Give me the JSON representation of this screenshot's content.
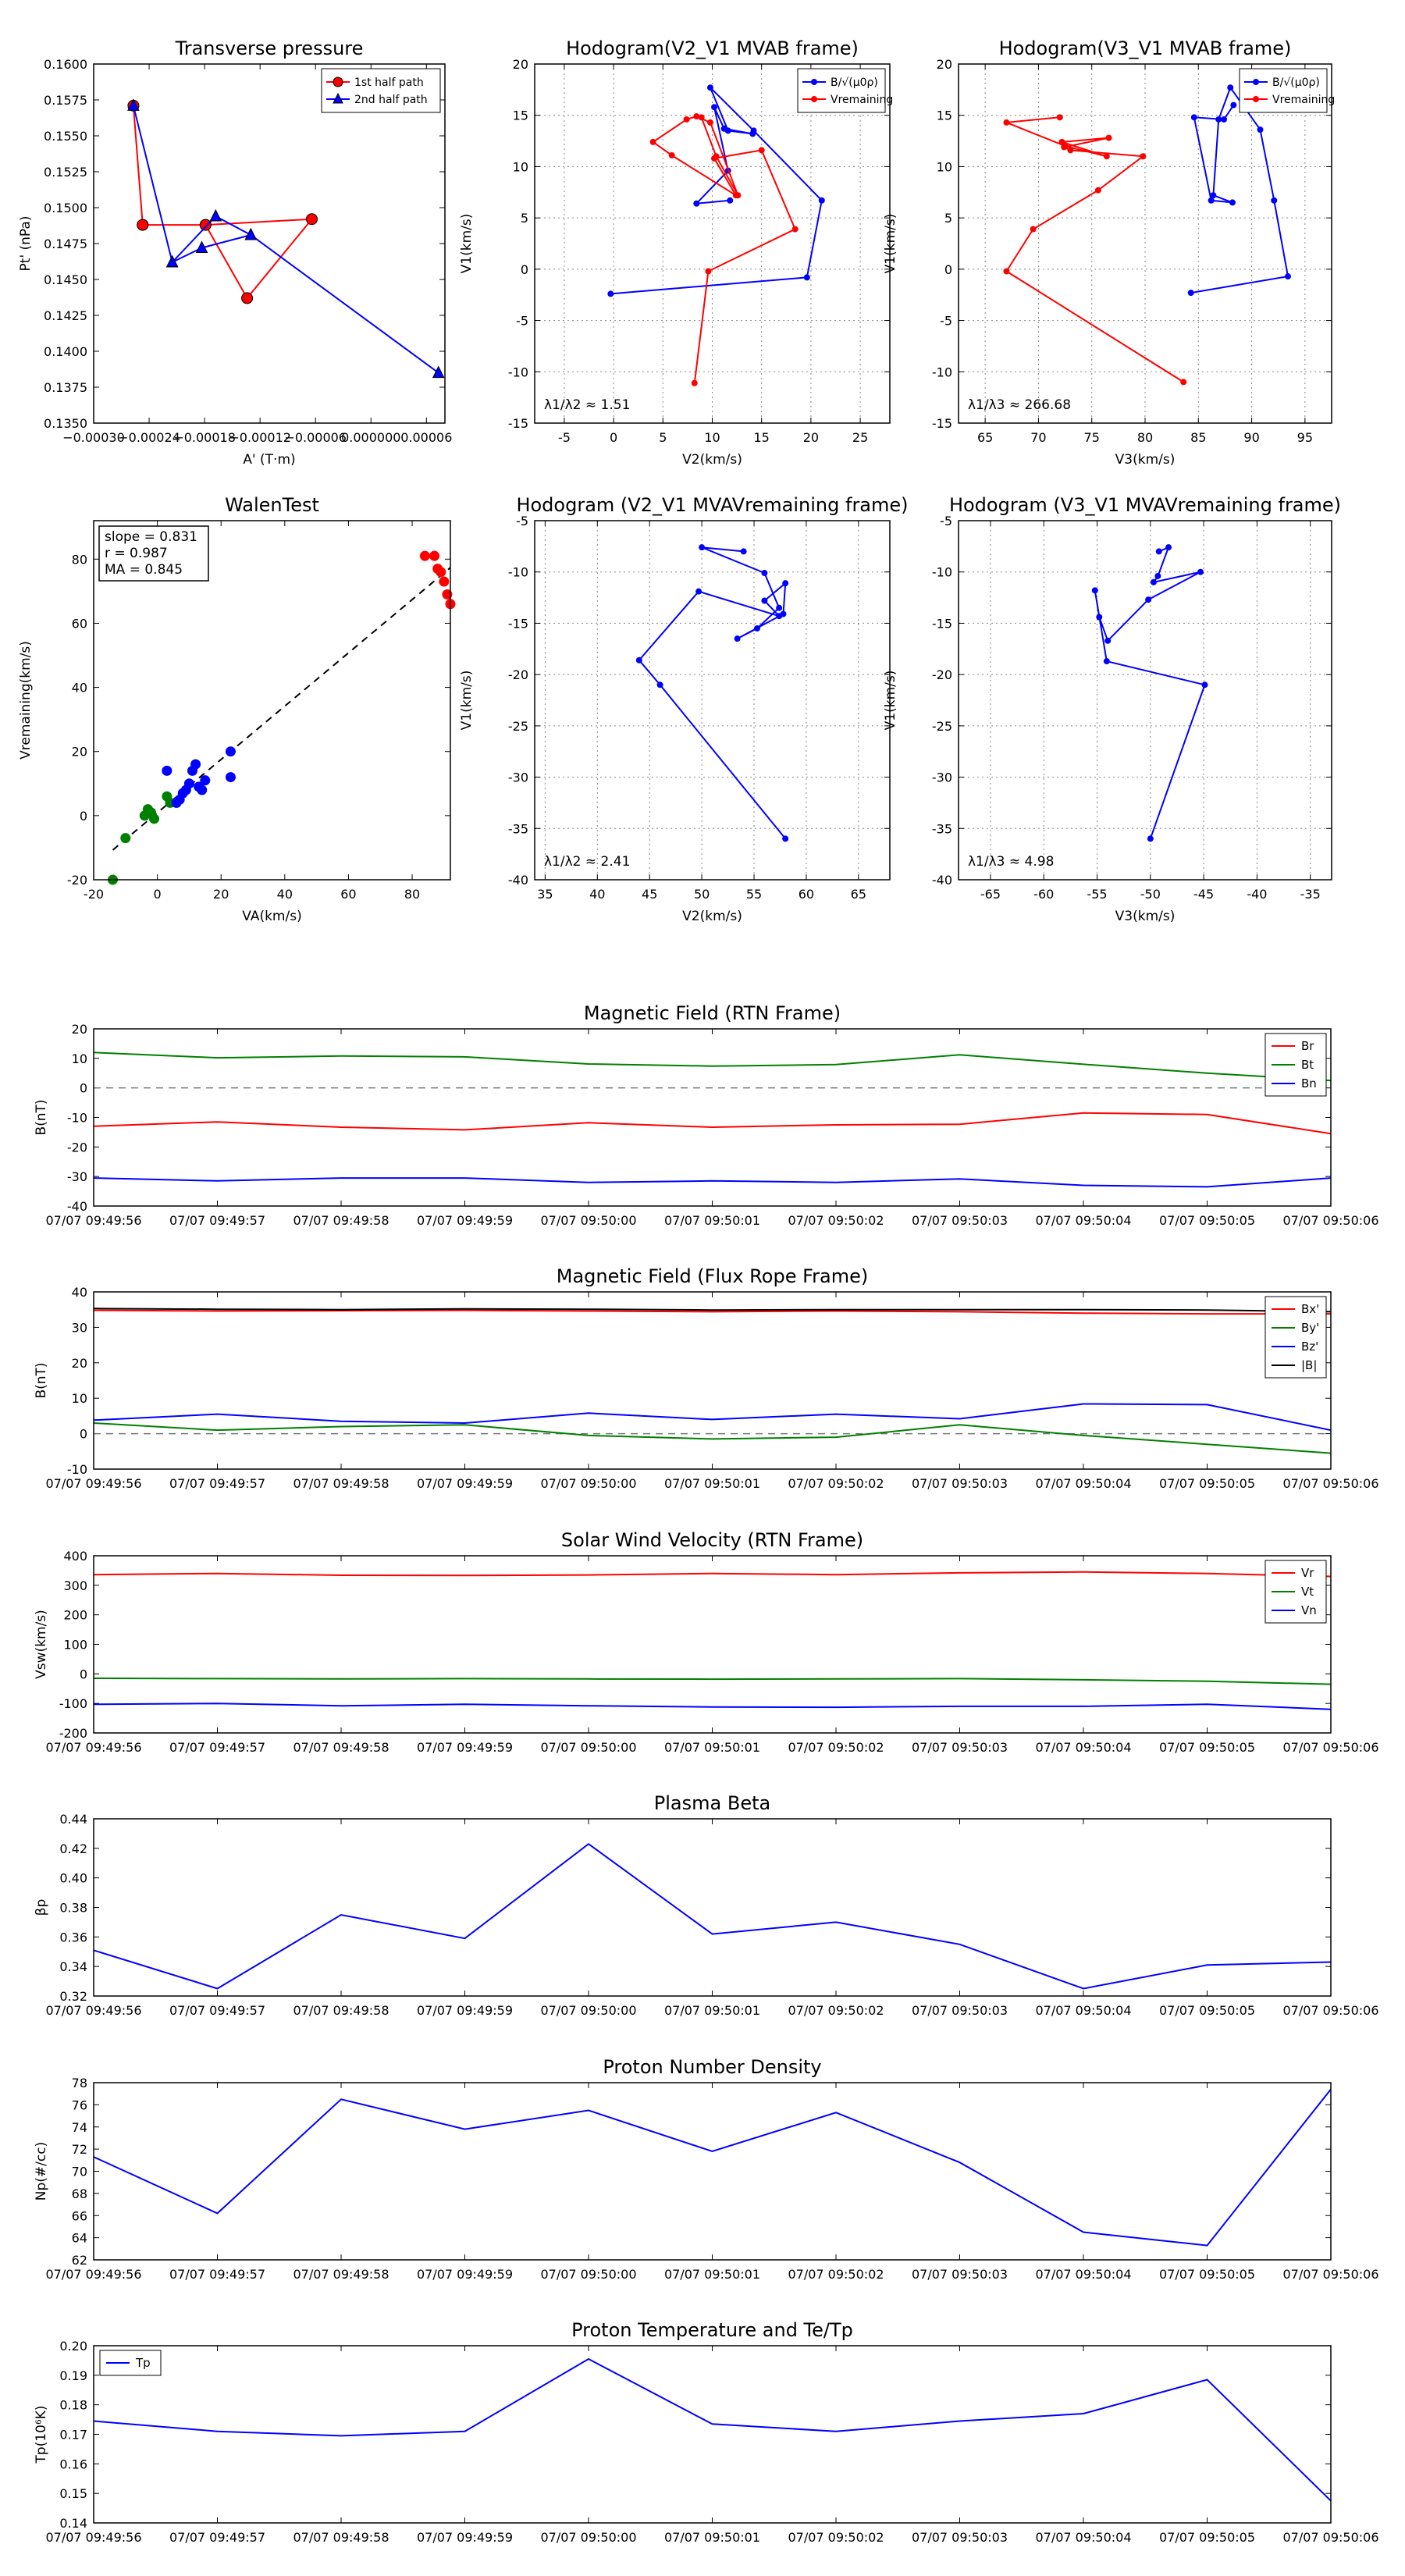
{
  "chart_data": [
    {
      "id": "tp",
      "type": "line",
      "title": "Transverse pressure",
      "xlabel": "A' (T·m)",
      "ylabel": "Pt' (nPa)",
      "xlim": [
        -0.0003,
        8e-05
      ],
      "ylim": [
        0.135,
        0.16
      ],
      "xticks": [
        -0.0003,
        -0.00024,
        -0.00018,
        -0.00012,
        -6e-05,
        0.0,
        6e-05
      ],
      "xtick_labels": [
        "−0.00030",
        "−0.00024",
        "−0.00018",
        "−0.00012",
        "−0.00006",
        "0.000000",
        "0.00006"
      ],
      "yticks": [
        0.135,
        0.1375,
        0.14,
        0.1425,
        0.145,
        0.1475,
        0.15,
        0.1525,
        0.155,
        0.1575,
        0.16
      ],
      "ytick_labels": [
        "0.1350",
        "0.1375",
        "0.1400",
        "0.1425",
        "0.1450",
        "0.1475",
        "0.1500",
        "0.1525",
        "0.1550",
        "0.1575",
        "0.1600"
      ],
      "grid": false,
      "legend": "top-right",
      "series": [
        {
          "name": "1st half path",
          "color": "#ff0000",
          "marker": "circle",
          "x": [
            -0.000257,
            -0.000247,
            -0.000179,
            -0.000134,
            -6.4e-05,
            -0.000179,
            -0.000247
          ],
          "y": [
            0.1571,
            0.1488,
            0.1488,
            0.1437,
            0.1492,
            0.1488,
            0.1488
          ]
        },
        {
          "name": "2nd half path",
          "color": "#0000ff",
          "marker": "triangle",
          "x": [
            -0.000257,
            -0.000215,
            -0.000168,
            -0.00013,
            7.3e-05,
            -0.00013,
            -0.000183,
            -0.000215
          ],
          "y": [
            0.1571,
            0.1462,
            0.1494,
            0.1481,
            0.1385,
            0.1481,
            0.1472,
            0.1462
          ]
        }
      ]
    },
    {
      "id": "h1",
      "type": "line",
      "title": "Hodogram(V2_V1 MVAB frame)",
      "xlabel": "V2(km/s)",
      "ylabel": "V1(km/s)",
      "xlim": [
        -8,
        28
      ],
      "ylim": [
        -15,
        20
      ],
      "xticks": [
        -5,
        0,
        5,
        10,
        15,
        20,
        25
      ],
      "yticks": [
        -15,
        -10,
        -5,
        0,
        5,
        10,
        15,
        20
      ],
      "grid": true,
      "legend": "top-right",
      "annotation": "λ1/λ2 ≈ 1.51",
      "series": [
        {
          "name": "B/√(μ0ρ)",
          "color": "#0000ff",
          "x": [
            -0.3,
            19.6,
            21.1,
            14.2,
            9.8,
            11.6,
            14.1,
            11.2,
            10.2,
            11.6,
            8.4,
            11.8
          ],
          "y": [
            -2.4,
            -0.8,
            6.7,
            13.5,
            17.7,
            13.5,
            13.2,
            13.7,
            15.8,
            9.6,
            6.4,
            6.7
          ]
        },
        {
          "name": "Vremaining",
          "color": "#ff0000",
          "x": [
            8.2,
            9.6,
            18.4,
            15.0,
            10.2,
            12.4,
            5.9,
            4.0,
            7.4,
            8.4,
            9.8,
            12.6,
            10.4,
            8.9
          ],
          "y": [
            -11.1,
            -0.2,
            3.9,
            11.6,
            10.8,
            7.2,
            11.1,
            12.4,
            14.6,
            14.9,
            14.3,
            7.2,
            11.0,
            14.8
          ]
        }
      ]
    },
    {
      "id": "h2",
      "type": "line",
      "title": "Hodogram(V3_V1 MVAB frame)",
      "xlabel": "V3(km/s)",
      "ylabel": "V1(km/s)",
      "xlim": [
        62.5,
        97.5
      ],
      "ylim": [
        -15,
        20
      ],
      "xticks": [
        65,
        70,
        75,
        80,
        85,
        90,
        95
      ],
      "yticks": [
        -15,
        -10,
        -5,
        0,
        5,
        10,
        15,
        20
      ],
      "grid": true,
      "legend": "top-right",
      "annotation": "λ1/λ3 ≈ 266.68",
      "series": [
        {
          "name": "B/√(μ0ρ)",
          "color": "#0000ff",
          "x": [
            84.3,
            93.4,
            92.1,
            90.8,
            88.0,
            86.9,
            86.4,
            88.2,
            86.2,
            84.6,
            87.4,
            88.3
          ],
          "y": [
            -2.3,
            -0.7,
            6.7,
            13.6,
            17.7,
            14.6,
            7.2,
            6.5,
            6.7,
            14.8,
            14.6,
            16.0
          ]
        },
        {
          "name": "Vremaining",
          "color": "#ff0000",
          "x": [
            83.6,
            67.0,
            69.5,
            75.6,
            79.8,
            73.0,
            72.4,
            76.6,
            72.2,
            76.4,
            72.5,
            67.0,
            72.0
          ],
          "y": [
            -11.0,
            -0.2,
            3.9,
            7.7,
            11.0,
            11.6,
            11.9,
            12.8,
            12.4,
            11.0,
            12.0,
            14.3,
            14.8
          ]
        }
      ]
    },
    {
      "id": "walen",
      "type": "scatter",
      "title": "WalenTest",
      "xlabel": "VA(km/s)",
      "ylabel": "Vremaining(km/s)",
      "xlim": [
        -20,
        92
      ],
      "ylim": [
        -20,
        92
      ],
      "xticks": [
        -20,
        0,
        20,
        40,
        60,
        80
      ],
      "yticks": [
        -20,
        0,
        20,
        40,
        60,
        80
      ],
      "grid": false,
      "stats": [
        "slope = 0.831",
        "r = 0.987",
        "MA = 0.845"
      ],
      "fit_line": {
        "slope": 0.831,
        "intercept": 0.9,
        "color": "#000000",
        "style": "dashed"
      },
      "series": [
        {
          "name": "red",
          "color": "#ff0000",
          "x": [
            84,
            87,
            88,
            89,
            90,
            91,
            92
          ],
          "y": [
            81,
            81,
            77,
            76,
            73,
            69,
            66
          ]
        },
        {
          "name": "green",
          "color": "#008000",
          "x": [
            -14,
            -10,
            -4,
            -3,
            -2,
            -1,
            3,
            4,
            6
          ],
          "y": [
            -20,
            -7,
            0,
            2,
            1,
            -1,
            6,
            4,
            4
          ]
        },
        {
          "name": "blue",
          "color": "#0000ff",
          "x": [
            3,
            6,
            7,
            8,
            9,
            10,
            11,
            12,
            13,
            14,
            15,
            23,
            23
          ],
          "y": [
            14,
            4,
            5,
            7,
            8,
            10,
            14,
            16,
            9,
            8,
            11,
            12,
            20
          ]
        }
      ]
    },
    {
      "id": "h3",
      "type": "line",
      "title": "Hodogram (V2_V1 MVAVremaining frame)",
      "xlabel": "V2(km/s)",
      "ylabel": "V1(km/s)",
      "xlim": [
        34,
        68
      ],
      "ylim": [
        -40,
        -5
      ],
      "xticks": [
        35,
        40,
        45,
        50,
        55,
        60,
        65
      ],
      "yticks": [
        -40,
        -35,
        -30,
        -25,
        -20,
        -15,
        -10,
        -5
      ],
      "grid": true,
      "annotation": "λ1/λ2 ≈ 2.41",
      "series": [
        {
          "name": "V",
          "color": "#0000ff",
          "x": [
            58.0,
            46.0,
            44.0,
            49.7,
            57.4,
            56.0,
            58.0,
            57.8,
            53.4,
            55.3,
            57.4,
            56.0,
            50.0,
            54.0
          ],
          "y": [
            -36.0,
            -21.0,
            -18.6,
            -11.9,
            -14.3,
            -12.8,
            -11.1,
            -14.1,
            -16.5,
            -15.5,
            -13.5,
            -10.1,
            -7.6,
            -8.0
          ]
        }
      ]
    },
    {
      "id": "h4",
      "type": "line",
      "title": "Hodogram (V3_V1 MVAVremaining frame)",
      "xlabel": "V3(km/s)",
      "ylabel": "V1(km/s)",
      "xlim": [
        -68,
        -33
      ],
      "ylim": [
        -40,
        -5
      ],
      "xticks": [
        -65,
        -60,
        -55,
        -50,
        -45,
        -40,
        -35
      ],
      "yticks": [
        -40,
        -35,
        -30,
        -25,
        -20,
        -15,
        -10,
        -5
      ],
      "grid": true,
      "annotation": "λ1/λ3 ≈ 4.98",
      "series": [
        {
          "name": "V",
          "color": "#0000ff",
          "x": [
            -50.0,
            -44.9,
            -54.1,
            -55.2,
            -54.8,
            -54.0,
            -50.2,
            -45.3,
            -49.7,
            -49.3,
            -48.3,
            -49.2
          ],
          "y": [
            -36.0,
            -21.0,
            -18.7,
            -11.8,
            -14.4,
            -16.7,
            -12.7,
            -10.0,
            -11.0,
            -10.4,
            -7.6,
            -8.0
          ]
        }
      ]
    },
    {
      "id": "mag_rtn",
      "type": "line",
      "title": "Magnetic Field (RTN Frame)",
      "ylabel": "B(nT)",
      "ylim": [
        -40,
        20
      ],
      "yticks": [
        -40,
        -30,
        -20,
        -10,
        0,
        10,
        20
      ],
      "categories": [
        "07/07 09:49:56",
        "07/07 09:49:57",
        "07/07 09:49:58",
        "07/07 09:49:59",
        "07/07 09:50:00",
        "07/07 09:50:01",
        "07/07 09:50:02",
        "07/07 09:50:03",
        "07/07 09:50:04",
        "07/07 09:50:05",
        "07/07 09:50:06"
      ],
      "zero_line": true,
      "legend": "top-right",
      "series": [
        {
          "name": "Br",
          "color": "#ff0000",
          "values": [
            -13.0,
            -11.5,
            -13.3,
            -14.2,
            -11.8,
            -13.3,
            -12.5,
            -12.3,
            -8.5,
            -9.0,
            -15.5
          ]
        },
        {
          "name": "Bt",
          "color": "#008000",
          "values": [
            12.0,
            10.2,
            10.8,
            10.5,
            8.1,
            7.4,
            7.9,
            11.2,
            8.0,
            5.0,
            2.5
          ]
        },
        {
          "name": "Bn",
          "color": "#0000ff",
          "values": [
            -30.5,
            -31.5,
            -30.5,
            -30.5,
            -32.0,
            -31.5,
            -32.0,
            -30.8,
            -33.0,
            -33.5,
            -30.5
          ]
        }
      ]
    },
    {
      "id": "mag_fr",
      "type": "line",
      "title": "Magnetic Field (Flux Rope Frame)",
      "ylabel": "B(nT)",
      "ylim": [
        -10,
        40
      ],
      "yticks": [
        -10,
        0,
        10,
        20,
        30,
        40
      ],
      "categories": [
        "07/07 09:49:56",
        "07/07 09:49:57",
        "07/07 09:49:58",
        "07/07 09:49:59",
        "07/07 09:50:00",
        "07/07 09:50:01",
        "07/07 09:50:02",
        "07/07 09:50:03",
        "07/07 09:50:04",
        "07/07 09:50:05",
        "07/07 09:50:06"
      ],
      "zero_line": true,
      "legend": "top-right",
      "series": [
        {
          "name": "Bx'",
          "color": "#ff0000",
          "values": [
            34.8,
            34.6,
            34.7,
            34.8,
            34.6,
            34.4,
            34.6,
            34.4,
            34.0,
            33.8,
            33.8
          ]
        },
        {
          "name": "By'",
          "color": "#008000",
          "values": [
            3.0,
            1.0,
            2.0,
            2.5,
            -0.5,
            -1.5,
            -1.0,
            2.5,
            -0.5,
            -3.0,
            -5.5
          ]
        },
        {
          "name": "Bz'",
          "color": "#0000ff",
          "values": [
            3.8,
            5.5,
            3.5,
            3.0,
            5.8,
            4.0,
            5.5,
            4.2,
            8.4,
            8.2,
            1.0
          ]
        },
        {
          "name": "|B|",
          "color": "#000000",
          "values": [
            35.3,
            35.1,
            35.0,
            35.2,
            35.1,
            34.9,
            35.0,
            35.0,
            35.0,
            34.9,
            34.4
          ]
        }
      ]
    },
    {
      "id": "vsw",
      "type": "line",
      "title": "Solar Wind Velocity (RTN Frame)",
      "ylabel": "Vsw(km/s)",
      "ylim": [
        -200,
        400
      ],
      "yticks": [
        -200,
        -100,
        0,
        100,
        200,
        300,
        400
      ],
      "categories": [
        "07/07 09:49:56",
        "07/07 09:49:57",
        "07/07 09:49:58",
        "07/07 09:49:59",
        "07/07 09:50:00",
        "07/07 09:50:01",
        "07/07 09:50:02",
        "07/07 09:50:03",
        "07/07 09:50:04",
        "07/07 09:50:05",
        "07/07 09:50:06"
      ],
      "zero_line": false,
      "legend": "top-right",
      "series": [
        {
          "name": "Vr",
          "color": "#ff0000",
          "values": [
            336,
            340,
            334,
            333,
            335,
            340,
            336,
            342,
            345,
            340,
            330
          ]
        },
        {
          "name": "Vt",
          "color": "#008000",
          "values": [
            -15,
            -16,
            -17,
            -16,
            -17,
            -18,
            -17,
            -16,
            -20,
            -25,
            -35
          ]
        },
        {
          "name": "Vn",
          "color": "#0000ff",
          "values": [
            -103,
            -100,
            -108,
            -103,
            -108,
            -112,
            -113,
            -110,
            -110,
            -103,
            -120
          ]
        }
      ]
    },
    {
      "id": "beta",
      "type": "line",
      "title": "Plasma Beta",
      "ylabel": "βp",
      "ylim": [
        0.32,
        0.44
      ],
      "yticks": [
        0.32,
        0.34,
        0.36,
        0.38,
        0.4,
        0.42,
        0.44
      ],
      "ytick_labels": [
        "0.32",
        "0.34",
        "0.36",
        "0.38",
        "0.40",
        "0.42",
        "0.44"
      ],
      "categories": [
        "07/07 09:49:56",
        "07/07 09:49:57",
        "07/07 09:49:58",
        "07/07 09:49:59",
        "07/07 09:50:00",
        "07/07 09:50:01",
        "07/07 09:50:02",
        "07/07 09:50:03",
        "07/07 09:50:04",
        "07/07 09:50:05",
        "07/07 09:50:06"
      ],
      "series": [
        {
          "name": "beta",
          "color": "#0000ff",
          "values": [
            0.351,
            0.325,
            0.375,
            0.359,
            0.423,
            0.362,
            0.37,
            0.355,
            0.325,
            0.341,
            0.343
          ]
        }
      ]
    },
    {
      "id": "np",
      "type": "line",
      "title": "Proton Number Density",
      "ylabel": "Np(#/cc)",
      "ylim": [
        62,
        78
      ],
      "yticks": [
        62,
        64,
        66,
        68,
        70,
        72,
        74,
        76,
        78
      ],
      "categories": [
        "07/07 09:49:56",
        "07/07 09:49:57",
        "07/07 09:49:58",
        "07/07 09:49:59",
        "07/07 09:50:00",
        "07/07 09:50:01",
        "07/07 09:50:02",
        "07/07 09:50:03",
        "07/07 09:50:04",
        "07/07 09:50:05",
        "07/07 09:50:06"
      ],
      "series": [
        {
          "name": "Np",
          "color": "#0000ff",
          "values": [
            71.3,
            66.2,
            76.5,
            73.8,
            75.5,
            71.8,
            75.3,
            70.8,
            64.5,
            63.3,
            77.4
          ]
        }
      ]
    },
    {
      "id": "tp2",
      "type": "line",
      "title": "Proton Temperature and Te/Tp",
      "ylabel": "Tp(10⁶K)",
      "ylim": [
        0.14,
        0.2
      ],
      "yticks": [
        0.14,
        0.15,
        0.16,
        0.17,
        0.18,
        0.19,
        0.2
      ],
      "ytick_labels": [
        "0.14",
        "0.15",
        "0.16",
        "0.17",
        "0.18",
        "0.19",
        "0.20"
      ],
      "categories": [
        "07/07 09:49:56",
        "07/07 09:49:57",
        "07/07 09:49:58",
        "07/07 09:49:59",
        "07/07 09:50:00",
        "07/07 09:50:01",
        "07/07 09:50:02",
        "07/07 09:50:03",
        "07/07 09:50:04",
        "07/07 09:50:05",
        "07/07 09:50:06"
      ],
      "legend": "top-left",
      "series": [
        {
          "name": "Tp",
          "color": "#0000ff",
          "values": [
            0.1745,
            0.171,
            0.1695,
            0.171,
            0.1955,
            0.1735,
            0.171,
            0.1745,
            0.177,
            0.1885,
            0.1475
          ]
        }
      ]
    }
  ]
}
